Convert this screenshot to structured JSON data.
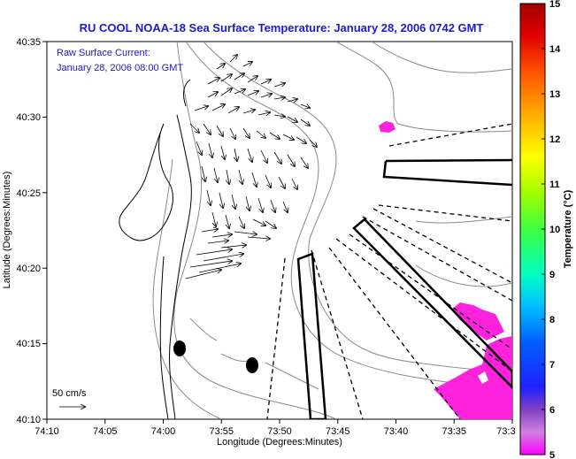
{
  "title": "RU COOL  NOAA-18  Sea Surface Temperature:  January 28, 2006 0742 GMT",
  "inset_label_1": "Raw Surface Current:",
  "inset_label_2": "January 28, 2006 08:00 GMT",
  "scale_label": "50 cm/s",
  "x_axis_label": "Longitude (Degrees:Minutes)",
  "y_axis_label": "Latitude (Degrees:Minutes)",
  "x_ticks": [
    "74:10",
    "74:05",
    "74:00",
    "73:55",
    "73:50",
    "73:45",
    "73:40",
    "73:35",
    "73:3"
  ],
  "y_ticks": [
    "40:35",
    "40:30",
    "40:25",
    "40:20",
    "40:15",
    "40:10"
  ],
  "colorbar_label": "Temperature (°C)",
  "colorbar_ticks": [
    "15",
    "14",
    "13",
    "12",
    "11",
    "10",
    "9",
    "8",
    "7",
    "6",
    "5"
  ],
  "colors": {
    "title": "#1a1ad0",
    "sst_patch": "#ff22dd",
    "coast": "#000000",
    "bathymetry": "#888888"
  }
}
